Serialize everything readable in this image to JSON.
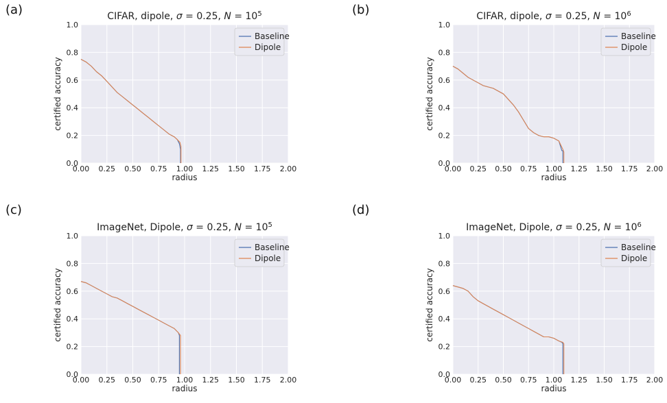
{
  "colors": {
    "baseline": "#4c72b0",
    "dipole": "#dd8452",
    "plot_bg": "#eaeaf2",
    "grid": "#ffffff"
  },
  "chart_data": [
    {
      "panel_label": "(a)",
      "type": "line",
      "title": {
        "prefix": "CIFAR, dipole, ",
        "sigma": "0.25",
        "N_exp": "5"
      },
      "xlabel": "radius",
      "ylabel": "certified accuracy",
      "xlim": [
        0,
        2
      ],
      "ylim": [
        0,
        1
      ],
      "xticks": [
        "0.00",
        "0.25",
        "0.50",
        "0.75",
        "1.00",
        "1.25",
        "1.50",
        "1.75",
        "2.00"
      ],
      "yticks": [
        "0.0",
        "0.2",
        "0.4",
        "0.6",
        "0.8",
        "1.0"
      ],
      "grid": true,
      "legend": "top-right",
      "series": [
        {
          "name": "Baseline",
          "x": [
            0,
            0.05,
            0.1,
            0.15,
            0.2,
            0.25,
            0.3,
            0.35,
            0.4,
            0.45,
            0.5,
            0.55,
            0.6,
            0.65,
            0.7,
            0.75,
            0.8,
            0.85,
            0.9,
            0.93,
            0.95,
            0.96,
            0.96
          ],
          "y": [
            0.75,
            0.73,
            0.7,
            0.66,
            0.63,
            0.59,
            0.55,
            0.51,
            0.48,
            0.45,
            0.42,
            0.39,
            0.36,
            0.33,
            0.3,
            0.27,
            0.24,
            0.21,
            0.19,
            0.17,
            0.14,
            0.1,
            0.0
          ]
        },
        {
          "name": "Dipole",
          "x": [
            0,
            0.05,
            0.1,
            0.15,
            0.2,
            0.25,
            0.3,
            0.35,
            0.4,
            0.45,
            0.5,
            0.55,
            0.6,
            0.65,
            0.7,
            0.75,
            0.8,
            0.85,
            0.9,
            0.93,
            0.955,
            0.965,
            0.965
          ],
          "y": [
            0.75,
            0.73,
            0.7,
            0.66,
            0.63,
            0.59,
            0.55,
            0.51,
            0.48,
            0.45,
            0.42,
            0.39,
            0.36,
            0.33,
            0.3,
            0.27,
            0.24,
            0.21,
            0.19,
            0.17,
            0.15,
            0.12,
            0.0
          ]
        }
      ]
    },
    {
      "panel_label": "(b)",
      "type": "line",
      "title": {
        "prefix": "CIFAR, dipole, ",
        "sigma": "0.25",
        "N_exp": "6"
      },
      "xlabel": "radius",
      "ylabel": "certified accuracy",
      "xlim": [
        0,
        2
      ],
      "ylim": [
        0,
        1
      ],
      "xticks": [
        "0.00",
        "0.25",
        "0.50",
        "0.75",
        "1.00",
        "1.25",
        "1.50",
        "1.75",
        "2.00"
      ],
      "yticks": [
        "0.0",
        "0.2",
        "0.4",
        "0.6",
        "0.8",
        "1.0"
      ],
      "grid": true,
      "legend": "top-right",
      "series": [
        {
          "name": "Baseline",
          "x": [
            0,
            0.05,
            0.1,
            0.15,
            0.2,
            0.25,
            0.3,
            0.35,
            0.4,
            0.45,
            0.5,
            0.55,
            0.6,
            0.65,
            0.7,
            0.75,
            0.8,
            0.85,
            0.9,
            0.95,
            1.0,
            1.05,
            1.08,
            1.09,
            1.09
          ],
          "y": [
            0.7,
            0.68,
            0.65,
            0.62,
            0.6,
            0.58,
            0.56,
            0.55,
            0.54,
            0.52,
            0.5,
            0.46,
            0.42,
            0.37,
            0.31,
            0.25,
            0.22,
            0.2,
            0.19,
            0.19,
            0.18,
            0.16,
            0.09,
            0.09,
            0.0
          ]
        },
        {
          "name": "Dipole",
          "x": [
            0,
            0.05,
            0.1,
            0.15,
            0.2,
            0.25,
            0.3,
            0.35,
            0.4,
            0.45,
            0.5,
            0.55,
            0.6,
            0.65,
            0.7,
            0.75,
            0.8,
            0.85,
            0.9,
            0.95,
            1.0,
            1.05,
            1.09,
            1.1,
            1.1
          ],
          "y": [
            0.7,
            0.68,
            0.65,
            0.62,
            0.6,
            0.58,
            0.56,
            0.55,
            0.54,
            0.52,
            0.5,
            0.46,
            0.42,
            0.37,
            0.31,
            0.25,
            0.22,
            0.2,
            0.19,
            0.19,
            0.18,
            0.16,
            0.1,
            0.08,
            0.0
          ]
        }
      ]
    },
    {
      "panel_label": "(c)",
      "type": "line",
      "title": {
        "prefix": "ImageNet, Dipole, ",
        "sigma": "0.25",
        "N_exp": "5"
      },
      "xlabel": "radius",
      "ylabel": "certified accuracy",
      "xlim": [
        0,
        2
      ],
      "ylim": [
        0,
        1
      ],
      "xticks": [
        "0.00",
        "0.25",
        "0.50",
        "0.75",
        "1.00",
        "1.25",
        "1.50",
        "1.75",
        "2.00"
      ],
      "yticks": [
        "0.0",
        "0.2",
        "0.4",
        "0.6",
        "0.8",
        "1.0"
      ],
      "grid": true,
      "legend": "top-right",
      "series": [
        {
          "name": "Baseline",
          "x": [
            0,
            0.05,
            0.1,
            0.15,
            0.2,
            0.25,
            0.3,
            0.35,
            0.4,
            0.45,
            0.5,
            0.55,
            0.6,
            0.65,
            0.7,
            0.75,
            0.8,
            0.85,
            0.9,
            0.94,
            0.95,
            0.95
          ],
          "y": [
            0.67,
            0.66,
            0.64,
            0.62,
            0.6,
            0.58,
            0.56,
            0.55,
            0.53,
            0.51,
            0.49,
            0.47,
            0.45,
            0.43,
            0.41,
            0.39,
            0.37,
            0.35,
            0.33,
            0.3,
            0.28,
            0.0
          ]
        },
        {
          "name": "Dipole",
          "x": [
            0,
            0.05,
            0.1,
            0.15,
            0.2,
            0.25,
            0.3,
            0.35,
            0.4,
            0.45,
            0.5,
            0.55,
            0.6,
            0.65,
            0.7,
            0.75,
            0.8,
            0.85,
            0.9,
            0.94,
            0.96,
            0.96
          ],
          "y": [
            0.67,
            0.66,
            0.64,
            0.62,
            0.6,
            0.58,
            0.56,
            0.55,
            0.53,
            0.51,
            0.49,
            0.47,
            0.45,
            0.43,
            0.41,
            0.39,
            0.37,
            0.35,
            0.33,
            0.3,
            0.28,
            0.0
          ]
        }
      ]
    },
    {
      "panel_label": "(d)",
      "type": "line",
      "title": {
        "prefix": "ImageNet, Dipole, ",
        "sigma": "0.25",
        "N_exp": "6"
      },
      "xlabel": "radius",
      "ylabel": "certified accuracy",
      "xlim": [
        0,
        2
      ],
      "ylim": [
        0,
        1
      ],
      "xticks": [
        "0.00",
        "0.25",
        "0.50",
        "0.75",
        "1.00",
        "1.25",
        "1.50",
        "1.75",
        "2.00"
      ],
      "yticks": [
        "0.0",
        "0.2",
        "0.4",
        "0.6",
        "0.8",
        "1.0"
      ],
      "grid": true,
      "legend": "top-right",
      "series": [
        {
          "name": "Baseline",
          "x": [
            0,
            0.05,
            0.1,
            0.15,
            0.2,
            0.25,
            0.3,
            0.35,
            0.4,
            0.45,
            0.5,
            0.55,
            0.6,
            0.65,
            0.7,
            0.75,
            0.8,
            0.85,
            0.9,
            0.95,
            1.0,
            1.05,
            1.08,
            1.09,
            1.09
          ],
          "y": [
            0.64,
            0.63,
            0.62,
            0.6,
            0.56,
            0.53,
            0.51,
            0.49,
            0.47,
            0.45,
            0.43,
            0.41,
            0.39,
            0.37,
            0.35,
            0.33,
            0.31,
            0.29,
            0.27,
            0.27,
            0.26,
            0.24,
            0.23,
            0.22,
            0.0
          ]
        },
        {
          "name": "Dipole",
          "x": [
            0,
            0.05,
            0.1,
            0.15,
            0.2,
            0.25,
            0.3,
            0.35,
            0.4,
            0.45,
            0.5,
            0.55,
            0.6,
            0.65,
            0.7,
            0.75,
            0.8,
            0.85,
            0.9,
            0.95,
            1.0,
            1.05,
            1.09,
            1.1,
            1.1
          ],
          "y": [
            0.64,
            0.63,
            0.62,
            0.6,
            0.56,
            0.53,
            0.51,
            0.49,
            0.47,
            0.45,
            0.43,
            0.41,
            0.39,
            0.37,
            0.35,
            0.33,
            0.31,
            0.29,
            0.27,
            0.27,
            0.26,
            0.24,
            0.23,
            0.22,
            0.0
          ]
        }
      ]
    }
  ]
}
